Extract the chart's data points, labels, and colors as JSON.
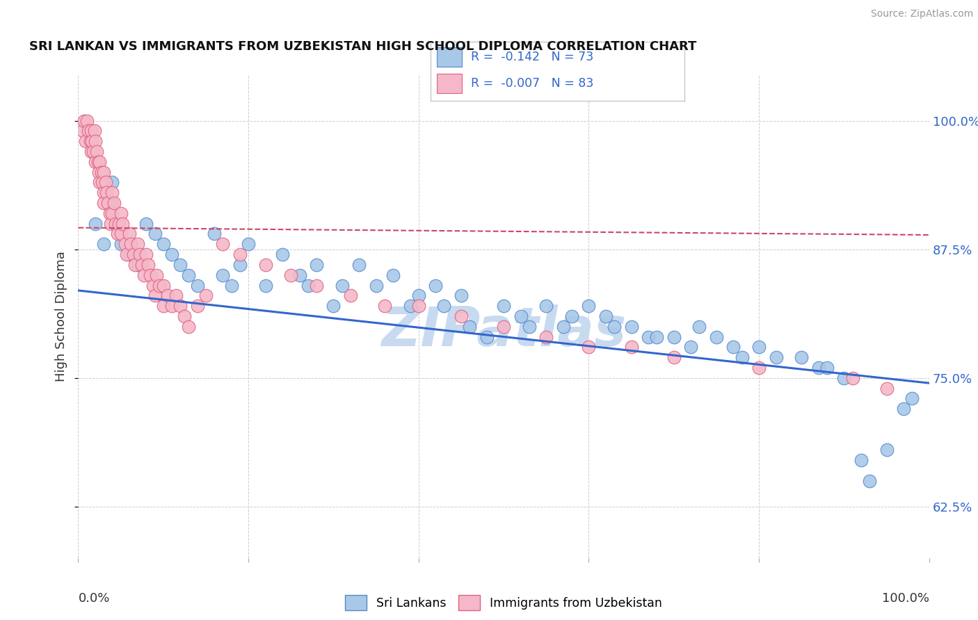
{
  "title": "SRI LANKAN VS IMMIGRANTS FROM UZBEKISTAN HIGH SCHOOL DIPLOMA CORRELATION CHART",
  "source": "Source: ZipAtlas.com",
  "ylabel": "High School Diploma",
  "legend_r_blue": "-0.142",
  "legend_n_blue": "73",
  "legend_r_pink": "-0.007",
  "legend_n_pink": "83",
  "ytick_vals": [
    0.625,
    0.75,
    0.875,
    1.0
  ],
  "xlim": [
    0.0,
    1.0
  ],
  "ylim": [
    0.575,
    1.045
  ],
  "blue_color": "#a8c8e8",
  "blue_edge_color": "#5588cc",
  "pink_color": "#f4b8c8",
  "pink_edge_color": "#e06080",
  "blue_line_color": "#3366cc",
  "pink_line_color": "#cc4466",
  "watermark_color": "#c8daf0",
  "background_color": "#ffffff",
  "grid_color": "#cccccc",
  "title_color": "#111111",
  "label_color": "#3366cc",
  "source_color": "#999999"
}
